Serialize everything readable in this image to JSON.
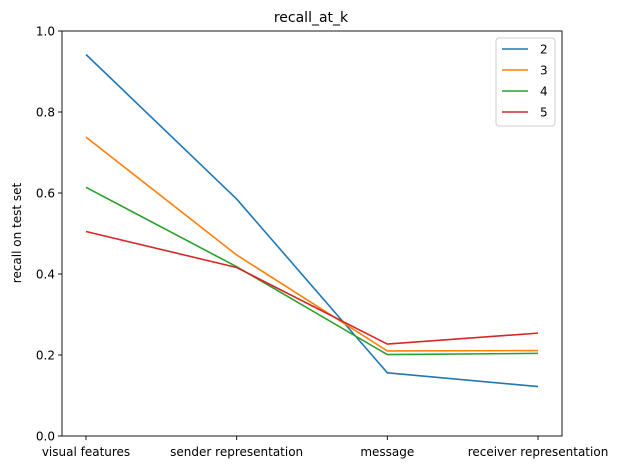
{
  "chart_data": {
    "type": "line",
    "title": "recall_at_k",
    "xlabel": "",
    "ylabel": "recall on test set",
    "categories": [
      "visual features",
      "sender representation",
      "message",
      "receiver representation"
    ],
    "ylim": [
      0.0,
      1.0
    ],
    "yticks": [
      "0.0",
      "0.2",
      "0.4",
      "0.6",
      "0.8",
      "1.0"
    ],
    "grid": false,
    "legend_position": "top-right",
    "series": [
      {
        "name": "2",
        "color": "#1f77b4",
        "values": [
          0.942,
          0.585,
          0.156,
          0.122
        ]
      },
      {
        "name": "3",
        "color": "#ff7f0e",
        "values": [
          0.738,
          0.447,
          0.21,
          0.211
        ]
      },
      {
        "name": "4",
        "color": "#2ca02c",
        "values": [
          0.614,
          0.418,
          0.201,
          0.204
        ]
      },
      {
        "name": "5",
        "color": "#d62728",
        "values": [
          0.505,
          0.416,
          0.227,
          0.254
        ]
      }
    ]
  }
}
